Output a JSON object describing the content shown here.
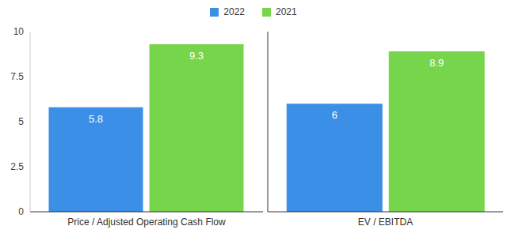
{
  "chart_data": {
    "type": "bar",
    "categories": [
      "Price / Adjusted Operating Cash Flow",
      "EV / EBITDA"
    ],
    "series": [
      {
        "name": "2022",
        "color": "#3b8fe6",
        "values": [
          5.8,
          6
        ]
      },
      {
        "name": "2021",
        "color": "#77d54b",
        "values": [
          9.3,
          8.9
        ]
      }
    ],
    "ylim": [
      0,
      10
    ],
    "yticks": [
      0,
      2.5,
      5,
      7.5,
      10
    ],
    "grid": false,
    "legend": "top",
    "data_labels": true
  }
}
